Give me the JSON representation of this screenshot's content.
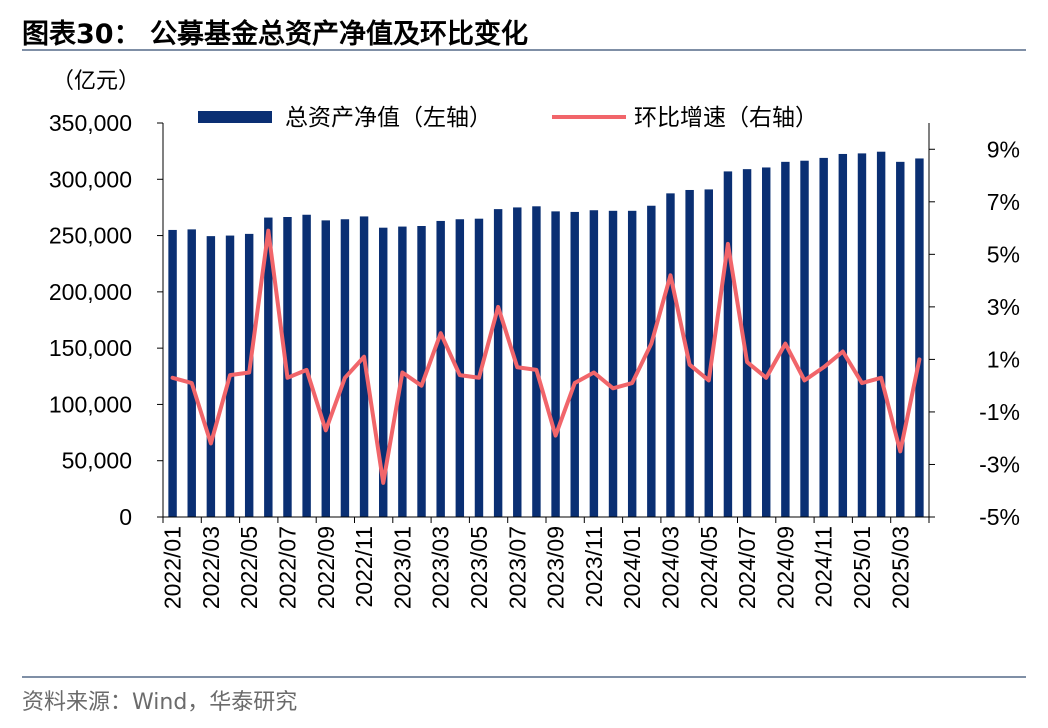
{
  "header": {
    "title": "图表30：  公募基金总资产净值及环比变化"
  },
  "footer": {
    "source": "资料来源：Wind，华泰研究"
  },
  "colors": {
    "bar": "#0a2f73",
    "line": "#f1656a",
    "rule": "#7f8fa6"
  },
  "chart_data": {
    "type": "bar",
    "y_unit_label": "（亿元）",
    "legend": {
      "bar_label": "总资产净值（左轴）",
      "line_label": "环比增速（右轴）",
      "placement": "top"
    },
    "left_axis": {
      "ylim": [
        0,
        350000
      ],
      "ticks": [
        "0",
        "50,000",
        "100,000",
        "150,000",
        "200,000",
        "250,000",
        "300,000",
        "350,000"
      ]
    },
    "right_axis": {
      "ylim": [
        -5,
        10
      ],
      "ticks": [
        "-5%",
        "-3%",
        "-1%",
        "1%",
        "3%",
        "5%",
        "7%",
        "9%"
      ]
    },
    "x_tick_labels": [
      "2022/01",
      "2022/03",
      "2022/05",
      "2022/07",
      "2022/09",
      "2022/11",
      "2023/01",
      "2023/03",
      "2023/05",
      "2023/07",
      "2023/09",
      "2023/11",
      "2024/01",
      "2024/03",
      "2024/05",
      "2024/07",
      "2024/09",
      "2024/11",
      "2025/01",
      "2025/03"
    ],
    "categories": [
      "2022/01",
      "2022/02",
      "2022/03",
      "2022/04",
      "2022/05",
      "2022/06",
      "2022/07",
      "2022/08",
      "2022/09",
      "2022/10",
      "2022/11",
      "2022/12",
      "2023/01",
      "2023/02",
      "2023/03",
      "2023/04",
      "2023/05",
      "2023/06",
      "2023/07",
      "2023/08",
      "2023/09",
      "2023/10",
      "2023/11",
      "2023/12",
      "2024/01",
      "2024/02",
      "2024/03",
      "2024/04",
      "2024/05",
      "2024/06",
      "2024/07",
      "2024/08",
      "2024/09",
      "2024/10",
      "2024/11",
      "2024/12",
      "2025/01",
      "2025/02",
      "2025/03",
      "2025/04"
    ],
    "series": [
      {
        "name": "总资产净值（左轴）",
        "type": "bar",
        "axis": "left",
        "values": [
          255000,
          255500,
          249500,
          250000,
          251500,
          266000,
          266500,
          268500,
          263500,
          264500,
          267000,
          257000,
          258000,
          258500,
          263000,
          264500,
          265000,
          273500,
          275000,
          276000,
          271500,
          271000,
          272500,
          272000,
          272000,
          276500,
          287500,
          290500,
          291000,
          307000,
          309000,
          310500,
          315500,
          316500,
          319000,
          322500,
          323000,
          324500,
          315500,
          318500
        ]
      },
      {
        "name": "环比增速（右轴）",
        "type": "line",
        "axis": "right",
        "values": [
          0.3,
          0.1,
          -2.2,
          0.4,
          0.5,
          5.9,
          0.3,
          0.6,
          -1.7,
          0.3,
          1.1,
          -3.7,
          0.5,
          0.0,
          2.0,
          0.4,
          0.3,
          3.0,
          0.7,
          0.6,
          -1.9,
          0.1,
          0.5,
          -0.1,
          0.1,
          1.6,
          4.2,
          0.8,
          0.2,
          5.4,
          0.9,
          0.3,
          1.6,
          0.2,
          0.7,
          1.3,
          0.1,
          0.3,
          -2.5,
          1.0
        ]
      }
    ]
  }
}
